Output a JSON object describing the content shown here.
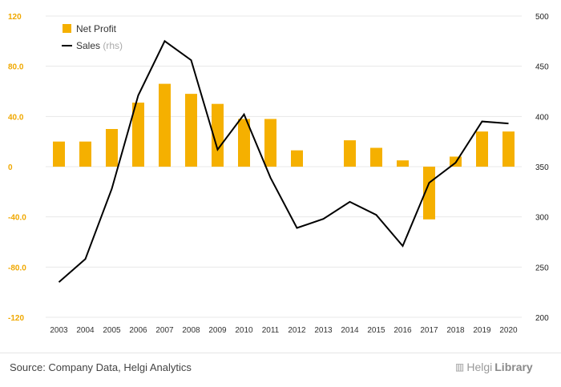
{
  "chart_data": {
    "type": "bar",
    "categories": [
      "2003",
      "2004",
      "2005",
      "2006",
      "2007",
      "2008",
      "2009",
      "2010",
      "2011",
      "2012",
      "2013",
      "2014",
      "2015",
      "2016",
      "2017",
      "2018",
      "2019",
      "2020"
    ],
    "series": [
      {
        "name": "Net Profit",
        "axis": "left",
        "type": "bar",
        "color": "#f5b000",
        "values": [
          20,
          20,
          30,
          51,
          66,
          58,
          50,
          38,
          38,
          13,
          0,
          21,
          15,
          5,
          -42,
          8,
          28,
          28
        ]
      },
      {
        "name": "Sales",
        "name_suffix": "(rhs)",
        "axis": "right",
        "type": "line",
        "color": "#000000",
        "values": [
          235,
          258,
          328,
          421,
          475,
          456,
          367,
          402,
          339,
          289,
          298,
          315,
          302,
          271,
          334,
          354,
          395,
          393
        ]
      }
    ],
    "y_left": {
      "min": -120,
      "max": 120,
      "ticks": [
        "120",
        "80.0",
        "40.0",
        "0",
        "-40.0",
        "-80.0",
        "-120"
      ]
    },
    "y_right": {
      "min": 200,
      "max": 500,
      "ticks": [
        "500",
        "450",
        "400",
        "350",
        "300",
        "250",
        "200"
      ]
    },
    "grid": true,
    "legend": "top-left"
  },
  "footer": {
    "source": "Source: Company Data, Helgi Analytics",
    "logo_light": "Helgi",
    "logo_bold": "Library"
  }
}
